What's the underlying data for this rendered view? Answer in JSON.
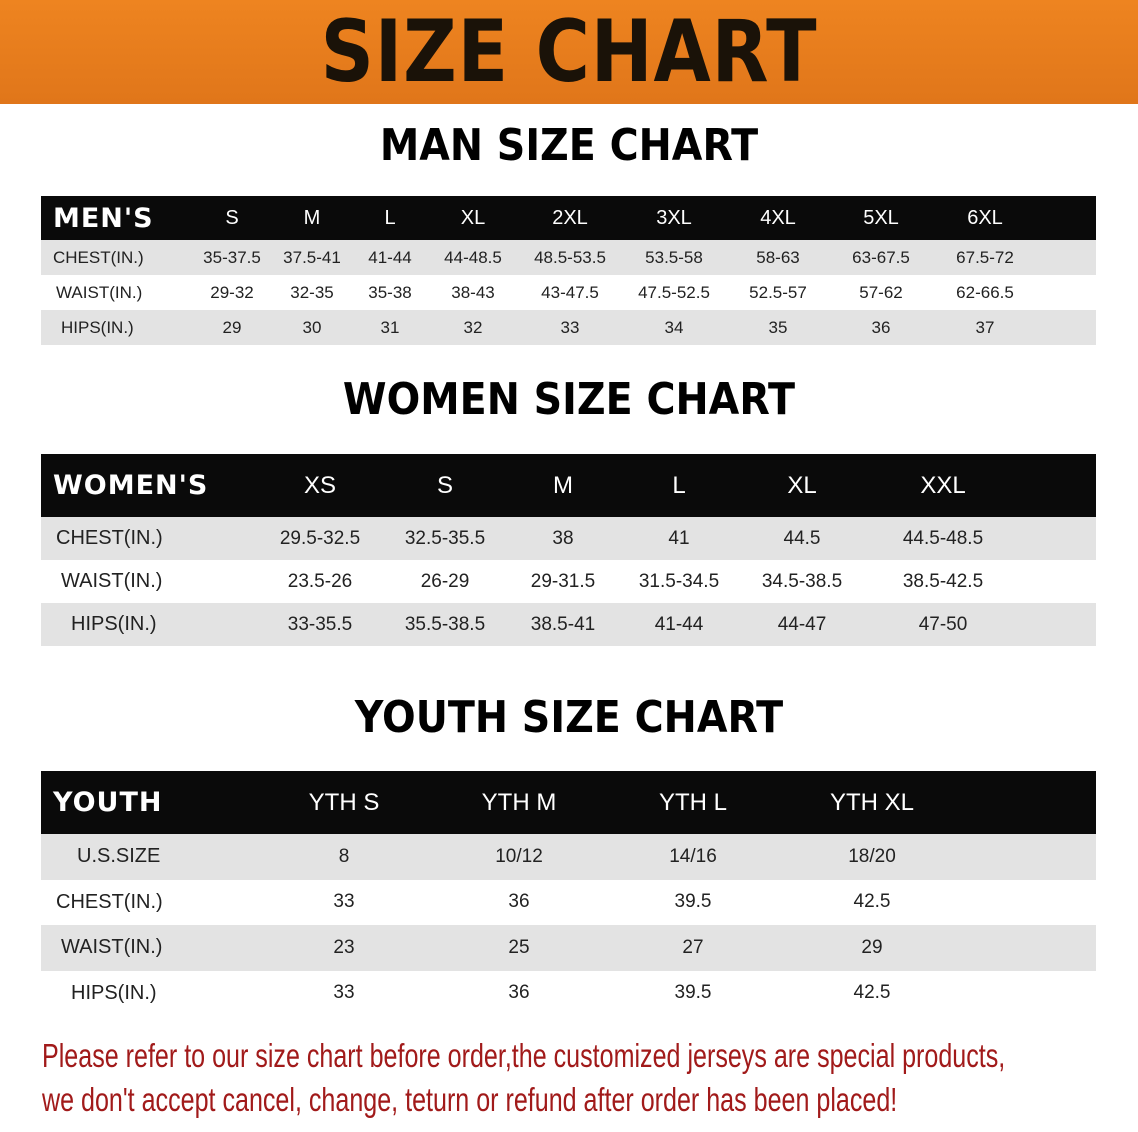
{
  "banner_title": "SIZE CHART",
  "men": {
    "title": "MAN SIZE CHART",
    "header": "MEN'S",
    "sizes": [
      "S",
      "M",
      "L",
      "XL",
      "2XL",
      "3XL",
      "4XL",
      "5XL",
      "6XL"
    ],
    "rows": [
      {
        "label": "CHEST(IN.)",
        "values": [
          "35-37.5",
          "37.5-41",
          "41-44",
          "44-48.5",
          "48.5-53.5",
          "53.5-58",
          "58-63",
          "63-67.5",
          "67.5-72"
        ]
      },
      {
        "label": "WAIST(IN.)",
        "values": [
          "29-32",
          "32-35",
          "35-38",
          "38-43",
          "43-47.5",
          "47.5-52.5",
          "52.5-57",
          "57-62",
          "62-66.5"
        ]
      },
      {
        "label": "HIPS(IN.)",
        "values": [
          "29",
          "30",
          "31",
          "32",
          "33",
          "34",
          "35",
          "36",
          "37"
        ]
      }
    ]
  },
  "women": {
    "title": "WOMEN SIZE CHART",
    "header": "WOMEN'S",
    "sizes": [
      "XS",
      "S",
      "M",
      "L",
      "XL",
      "XXL"
    ],
    "rows": [
      {
        "label": "CHEST(IN.)",
        "values": [
          "29.5-32.5",
          "32.5-35.5",
          "38",
          "41",
          "44.5",
          "44.5-48.5"
        ]
      },
      {
        "label": "WAIST(IN.)",
        "values": [
          "23.5-26",
          "26-29",
          "29-31.5",
          "31.5-34.5",
          "34.5-38.5",
          "38.5-42.5"
        ]
      },
      {
        "label": "HIPS(IN.)",
        "values": [
          "33-35.5",
          "35.5-38.5",
          "38.5-41",
          "41-44",
          "44-47",
          "47-50"
        ]
      }
    ]
  },
  "youth": {
    "title": "YOUTH SIZE CHART",
    "header": "YOUTH",
    "sizes": [
      "YTH S",
      "YTH M",
      "YTH L",
      "YTH XL"
    ],
    "rows": [
      {
        "label": "U.S.SIZE",
        "values": [
          "8",
          "10/12",
          "14/16",
          "18/20"
        ]
      },
      {
        "label": "CHEST(IN.)",
        "values": [
          "33",
          "36",
          "39.5",
          "42.5"
        ]
      },
      {
        "label": "WAIST(IN.)",
        "values": [
          "23",
          "25",
          "27",
          "29"
        ]
      },
      {
        "label": "HIPS(IN.)",
        "values": [
          "33",
          "36",
          "39.5",
          "42.5"
        ]
      }
    ]
  },
  "notice": [
    "Please refer to our size chart before order,the customized jerseys are special products,",
    "we don't accept cancel, change, teturn or refund after order has been placed!"
  ],
  "colors": {
    "banner": "#e8791a",
    "header_row": "#0a0a0a",
    "notice": "#a11a1a"
  }
}
